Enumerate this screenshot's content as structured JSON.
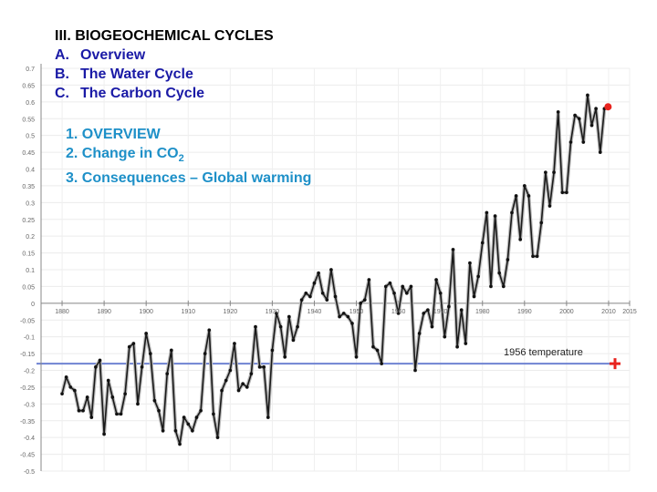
{
  "outline": {
    "heading": "III. BIOGEOCHEMICAL CYCLES",
    "sections": [
      {
        "letter": "A.",
        "label": "Overview"
      },
      {
        "letter": "B.",
        "label": "The Water Cycle"
      },
      {
        "letter": "C.",
        "label": "The Carbon Cycle"
      }
    ],
    "topics": [
      {
        "prefix": "1. OVERVIEW",
        "sub": "",
        "suffix": ""
      },
      {
        "prefix": "2. Change in CO",
        "sub": "2",
        "suffix": ""
      },
      {
        "prefix": "3. Consequences – Global warming",
        "sub": "",
        "suffix": ""
      }
    ]
  },
  "chart_data": {
    "type": "line",
    "title": "",
    "xlabel": "",
    "ylabel": "",
    "xlim": [
      1875,
      2015
    ],
    "ylim": [
      -0.5,
      0.7
    ],
    "x_ticks": [
      1880,
      1890,
      1900,
      1910,
      1920,
      1930,
      1940,
      1950,
      1960,
      1970,
      1980,
      1990,
      2000,
      2010,
      2015
    ],
    "x_tick_labels": [
      "1880",
      "1890",
      "1900",
      "1910",
      "1920",
      "1930",
      "1940",
      "1950",
      "1960",
      "1970",
      "1980",
      "1990",
      "2000",
      "2010",
      "2015"
    ],
    "y_ticks": [
      0.7,
      0.65,
      0.6,
      0.55,
      0.5,
      0.45,
      0.4,
      0.35,
      0.3,
      0.25,
      0.2,
      0.15,
      0.1,
      0.05,
      0,
      -0.05,
      -0.1,
      -0.15,
      -0.2,
      -0.25,
      -0.3,
      -0.35,
      -0.4,
      -0.45,
      -0.5
    ],
    "y_tick_labels": [
      "0.7",
      "0.65",
      "0.6",
      "0.55",
      "0.5",
      "0.45",
      "0.4",
      "0.35",
      "0.3",
      "0.25",
      "0.2",
      "0.15",
      "0.1",
      "0.05",
      "0",
      "-0.05",
      "-0.1",
      "-0.15",
      "-0.2",
      "-0.25",
      "-0.3",
      "-0.35",
      "-0.4",
      "-0.45",
      "-0.5"
    ],
    "grid": true,
    "series": [
      {
        "color": "#1a1a1a",
        "x": [
          1880,
          1881,
          1882,
          1883,
          1884,
          1885,
          1886,
          1887,
          1888,
          1889,
          1890,
          1891,
          1892,
          1893,
          1894,
          1895,
          1896,
          1897,
          1898,
          1899,
          1900,
          1901,
          1902,
          1903,
          1904,
          1905,
          1906,
          1907,
          1908,
          1909,
          1910,
          1911,
          1912,
          1913,
          1914,
          1915,
          1916,
          1917,
          1918,
          1919,
          1920,
          1921,
          1922,
          1923,
          1924,
          1925,
          1926,
          1927,
          1928,
          1929,
          1930,
          1931,
          1932,
          1933,
          1934,
          1935,
          1936,
          1937,
          1938,
          1939,
          1940,
          1941,
          1942,
          1943,
          1944,
          1945,
          1946,
          1947,
          1948,
          1949,
          1950,
          1951,
          1952,
          1953,
          1954,
          1955,
          1956,
          1957,
          1958,
          1959,
          1960,
          1961,
          1962,
          1963,
          1964,
          1965,
          1966,
          1967,
          1968,
          1969,
          1970,
          1971,
          1972,
          1973,
          1974,
          1975,
          1976,
          1977,
          1978,
          1979,
          1980,
          1981,
          1982,
          1983,
          1984,
          1985,
          1986,
          1987,
          1988,
          1989,
          1990,
          1991,
          1992,
          1993,
          1994,
          1995,
          1996,
          1997,
          1998,
          1999,
          2000,
          2001,
          2002,
          2003,
          2004,
          2005,
          2006,
          2007,
          2008,
          2009
        ],
        "values": [
          -0.27,
          -0.22,
          -0.25,
          -0.26,
          -0.32,
          -0.32,
          -0.28,
          -0.34,
          -0.19,
          -0.17,
          -0.39,
          -0.23,
          -0.28,
          -0.33,
          -0.33,
          -0.27,
          -0.13,
          -0.12,
          -0.3,
          -0.19,
          -0.09,
          -0.15,
          -0.29,
          -0.32,
          -0.38,
          -0.21,
          -0.14,
          -0.38,
          -0.42,
          -0.34,
          -0.36,
          -0.38,
          -0.34,
          -0.32,
          -0.15,
          -0.08,
          -0.33,
          -0.4,
          -0.26,
          -0.23,
          -0.2,
          -0.12,
          -0.26,
          -0.24,
          -0.25,
          -0.21,
          -0.07,
          -0.19,
          -0.19,
          -0.34,
          -0.14,
          -0.03,
          -0.07,
          -0.16,
          -0.04,
          -0.11,
          -0.07,
          0.01,
          0.03,
          0.02,
          0.06,
          0.09,
          0.03,
          0.01,
          0.1,
          0.02,
          -0.04,
          -0.03,
          -0.04,
          -0.06,
          -0.16,
          0.0,
          0.01,
          0.07,
          -0.13,
          -0.14,
          -0.18,
          0.05,
          0.06,
          0.03,
          -0.03,
          0.05,
          0.03,
          0.05,
          -0.2,
          -0.09,
          -0.03,
          -0.02,
          -0.07,
          0.07,
          0.03,
          -0.1,
          -0.01,
          0.16,
          -0.13,
          -0.02,
          -0.12,
          0.12,
          0.02,
          0.08,
          0.18,
          0.27,
          0.05,
          0.26,
          0.09,
          0.05,
          0.13,
          0.27,
          0.32,
          0.19,
          0.35,
          0.32,
          0.14,
          0.14,
          0.24,
          0.39,
          0.29,
          0.39,
          0.57,
          0.33,
          0.33,
          0.48,
          0.56,
          0.55,
          0.48,
          0.62,
          0.53,
          0.58,
          0.45,
          0.58
        ],
        "extra_points": [
          [
            2008,
            0.44
          ],
          [
            2009,
            0.57
          ],
          [
            2010,
            0.63
          ],
          [
            2011,
            0.51
          ]
        ]
      }
    ],
    "reference_line": {
      "label": "1956 temperature",
      "y": -0.18,
      "color": "#6f83d2"
    },
    "marker_color": "#e8231e"
  }
}
